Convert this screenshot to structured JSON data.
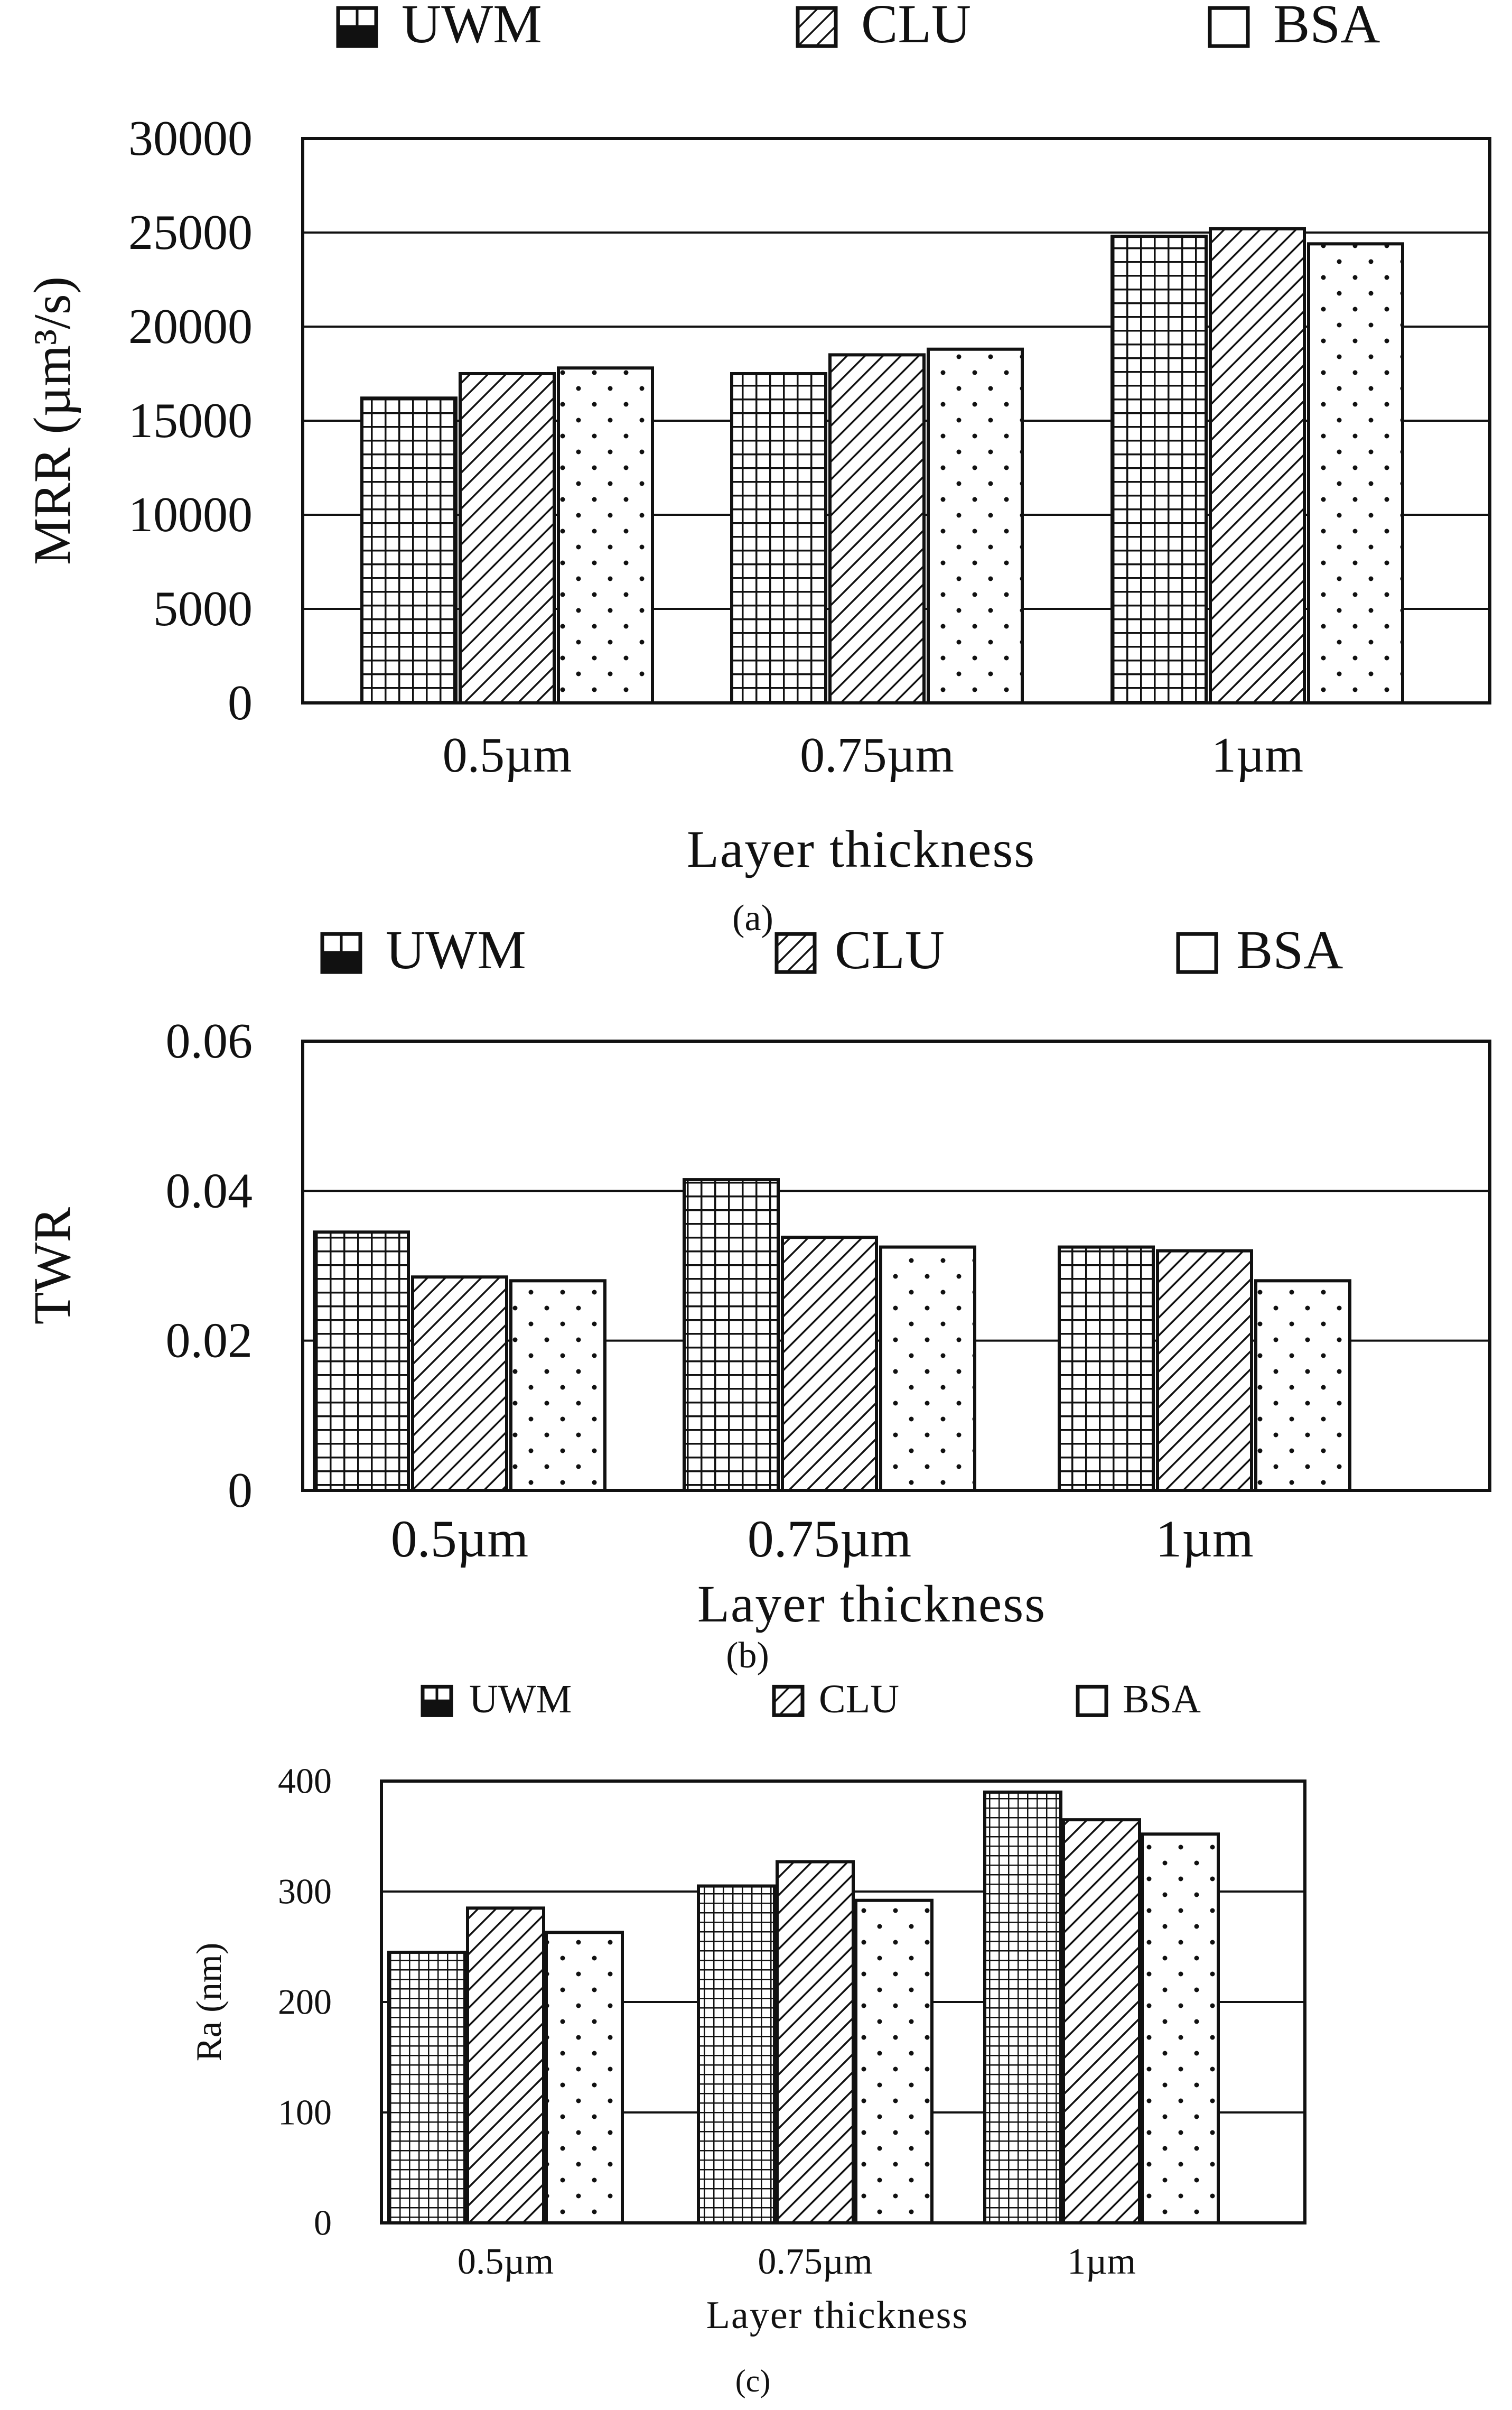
{
  "colors": {
    "ink": "#111111",
    "paper": "#ffffff"
  },
  "chart_data": [
    {
      "type": "bar",
      "panel_label": "(a)",
      "categories": [
        "0.5µm",
        "0.75µm",
        "1µm"
      ],
      "series": [
        {
          "name": "UWM",
          "pattern": "grid",
          "values": [
            16200,
            17500,
            24800
          ]
        },
        {
          "name": "CLU",
          "pattern": "hatch",
          "values": [
            17500,
            18500,
            25200
          ]
        },
        {
          "name": "BSA",
          "pattern": "dots",
          "values": [
            17800,
            18800,
            24400
          ]
        }
      ],
      "yticks": [
        "0",
        "5000",
        "10000",
        "15000",
        "20000",
        "25000",
        "30000"
      ],
      "ylim": [
        0,
        30000
      ],
      "ylabel": "MRR (µm³/s)",
      "xlabel": "Layer thickness",
      "legend": "top"
    },
    {
      "type": "bar",
      "panel_label": "(b)",
      "categories": [
        "0.5µm",
        "0.75µm",
        "1µm"
      ],
      "series": [
        {
          "name": "UWM",
          "pattern": "grid",
          "values": [
            0.0345,
            0.0415,
            0.0325
          ]
        },
        {
          "name": "CLU",
          "pattern": "hatch",
          "values": [
            0.0285,
            0.0338,
            0.032
          ]
        },
        {
          "name": "BSA",
          "pattern": "dots",
          "values": [
            0.028,
            0.0325,
            0.028
          ]
        }
      ],
      "yticks": [
        "0",
        "0.02",
        "0.04",
        "0.06"
      ],
      "ylim": [
        0,
        0.06
      ],
      "ylabel": "TWR",
      "xlabel": "Layer thickness",
      "legend": "top"
    },
    {
      "type": "bar",
      "panel_label": "(c)",
      "categories": [
        "0.5µm",
        "0.75µm",
        "1µm"
      ],
      "series": [
        {
          "name": "UWM",
          "pattern": "grid",
          "values": [
            245,
            305,
            390
          ]
        },
        {
          "name": "CLU",
          "pattern": "hatch",
          "values": [
            285,
            327,
            365
          ]
        },
        {
          "name": "BSA",
          "pattern": "dots",
          "values": [
            263,
            292,
            352
          ]
        }
      ],
      "yticks": [
        "0",
        "100",
        "200",
        "300",
        "400"
      ],
      "ylim": [
        0,
        400
      ],
      "ylabel": "Ra (nm)",
      "xlabel": "Layer thickness",
      "legend": "top"
    }
  ]
}
